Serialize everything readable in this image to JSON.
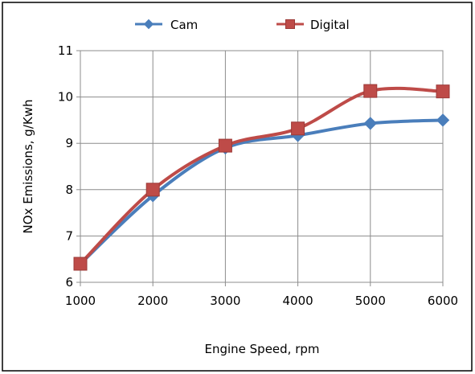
{
  "chart_data": {
    "type": "line",
    "title": "",
    "xlabel": "Engine Speed, rpm",
    "ylabel": "NOx Emissions, g/Kwh",
    "x": [
      1000,
      2000,
      3000,
      4000,
      5000,
      6000
    ],
    "x_tick_labels": [
      "1000",
      "2000",
      "3000",
      "4000",
      "5000",
      "6000"
    ],
    "ylim": [
      6,
      11
    ],
    "y_ticks": [
      6,
      7,
      8,
      9,
      10,
      11
    ],
    "y_tick_labels": [
      "6",
      "7",
      "8",
      "9",
      "10",
      "11"
    ],
    "grid": true,
    "legend_position": "top",
    "series": [
      {
        "name": "Cam",
        "values": [
          6.4,
          7.87,
          8.9,
          9.17,
          9.43,
          9.5
        ],
        "color": "#4a7ebb",
        "marker": "diamond"
      },
      {
        "name": "Digital",
        "values": [
          6.4,
          8.0,
          8.95,
          9.32,
          10.13,
          10.12
        ],
        "color": "#be4b48",
        "marker": "square"
      }
    ]
  }
}
